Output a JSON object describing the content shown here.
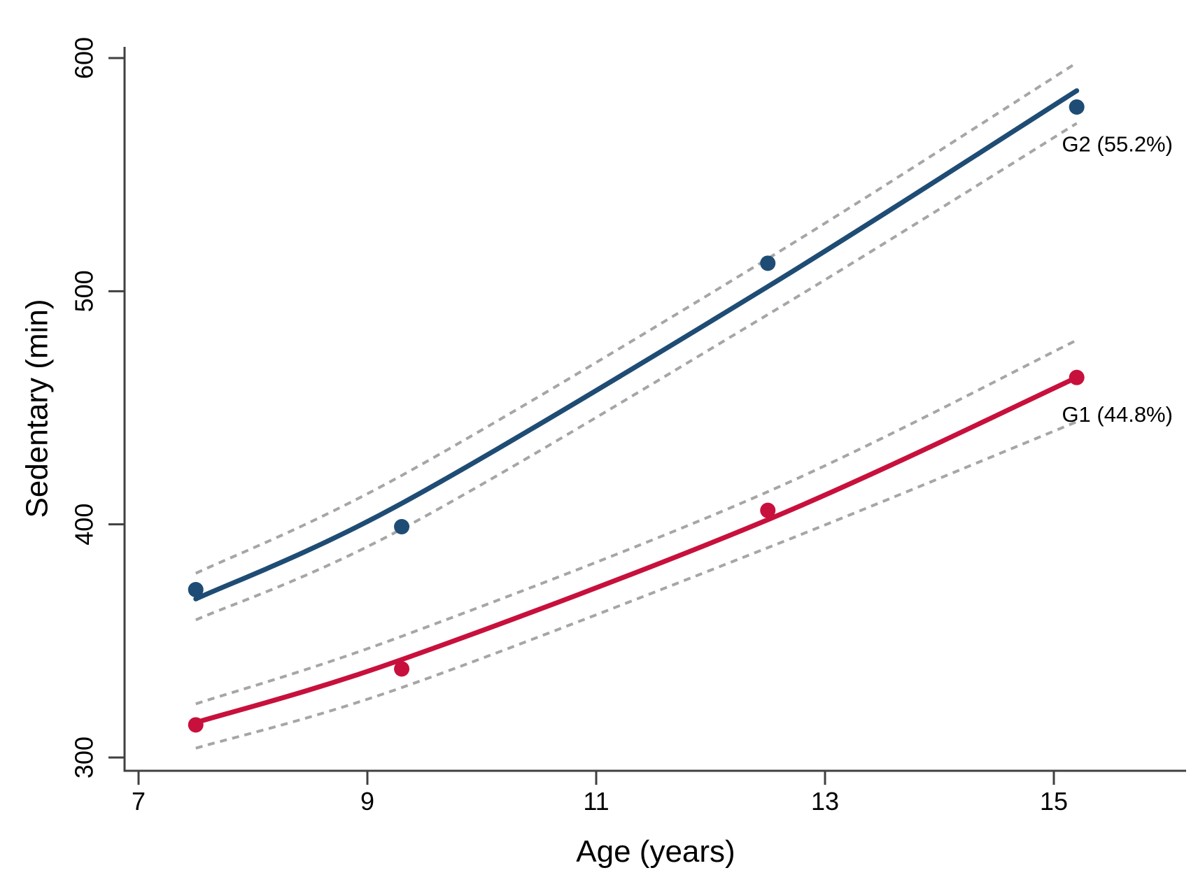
{
  "figure": {
    "background": "#ffffff"
  },
  "chart_data": {
    "type": "line",
    "title": "",
    "xlabel": "Age (years)",
    "ylabel": "Sedentary (min)",
    "x_ticks": [
      7,
      9,
      11,
      13,
      15
    ],
    "y_ticks": [
      300,
      400,
      500,
      600
    ],
    "xlim": [
      6.88,
      16.16
    ],
    "ylim": [
      294,
      605
    ],
    "grid": false,
    "legend_position": "inline-annotations",
    "axis_color": "#404040",
    "ci_line_color": "#a6a6a6",
    "ci_line_style": "dashed",
    "annotation_color": "#1f3864",
    "x": [
      7.5,
      9.3,
      12.5,
      15.2
    ],
    "series": [
      {
        "name": "G2",
        "annotation": "G2 (55.2%)",
        "color": "#1e4c74",
        "observed": [
          372,
          399,
          512,
          579
        ],
        "fitted": [
          368,
          409,
          502,
          586
        ],
        "ci_upper": [
          379,
          421,
          514,
          598
        ],
        "ci_lower": [
          359,
          398,
          490,
          572
        ],
        "annotation_x": 15.07,
        "annotation_y": 560
      },
      {
        "name": "G1",
        "annotation": "G1 (44.8%)",
        "color": "#c8103c",
        "observed": [
          314,
          338,
          406,
          463
        ],
        "fitted": [
          315,
          342,
          402,
          463
        ],
        "ci_upper": [
          323,
          352,
          414,
          479
        ],
        "ci_lower": [
          304,
          330,
          390,
          444
        ],
        "annotation_x": 15.07,
        "annotation_y": 444
      }
    ]
  }
}
